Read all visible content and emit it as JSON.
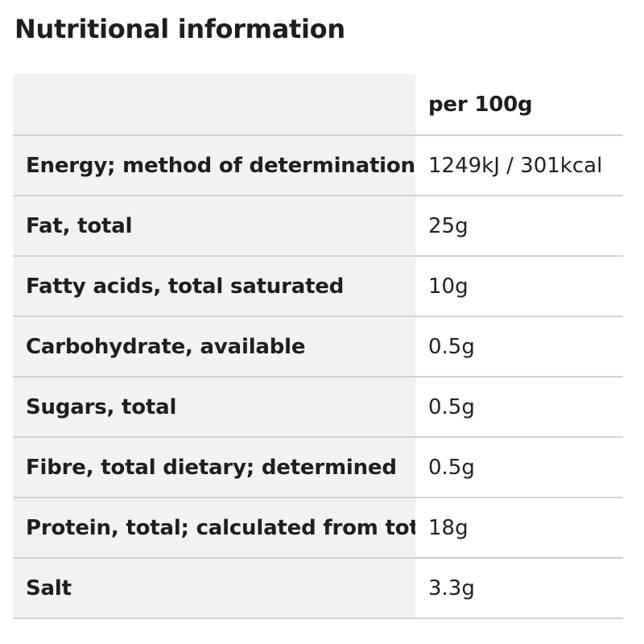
{
  "title": "Nutritional information",
  "table": {
    "corner": "",
    "column_header": "per 100g",
    "rows": [
      {
        "label": "Energy; method of determination",
        "value": "1249kJ / 301kcal"
      },
      {
        "label": "Fat, total",
        "value": "25g"
      },
      {
        "label": "Fatty acids, total saturated",
        "value": "10g"
      },
      {
        "label": "Carbohydrate, available",
        "value": "0.5g"
      },
      {
        "label": "Sugars, total",
        "value": "0.5g"
      },
      {
        "label": "Fibre, total dietary; determined",
        "value": "0.5g"
      },
      {
        "label": "Protein, total; calculated from total",
        "value": "18g"
      },
      {
        "label": "Salt",
        "value": "3.3g"
      }
    ]
  }
}
